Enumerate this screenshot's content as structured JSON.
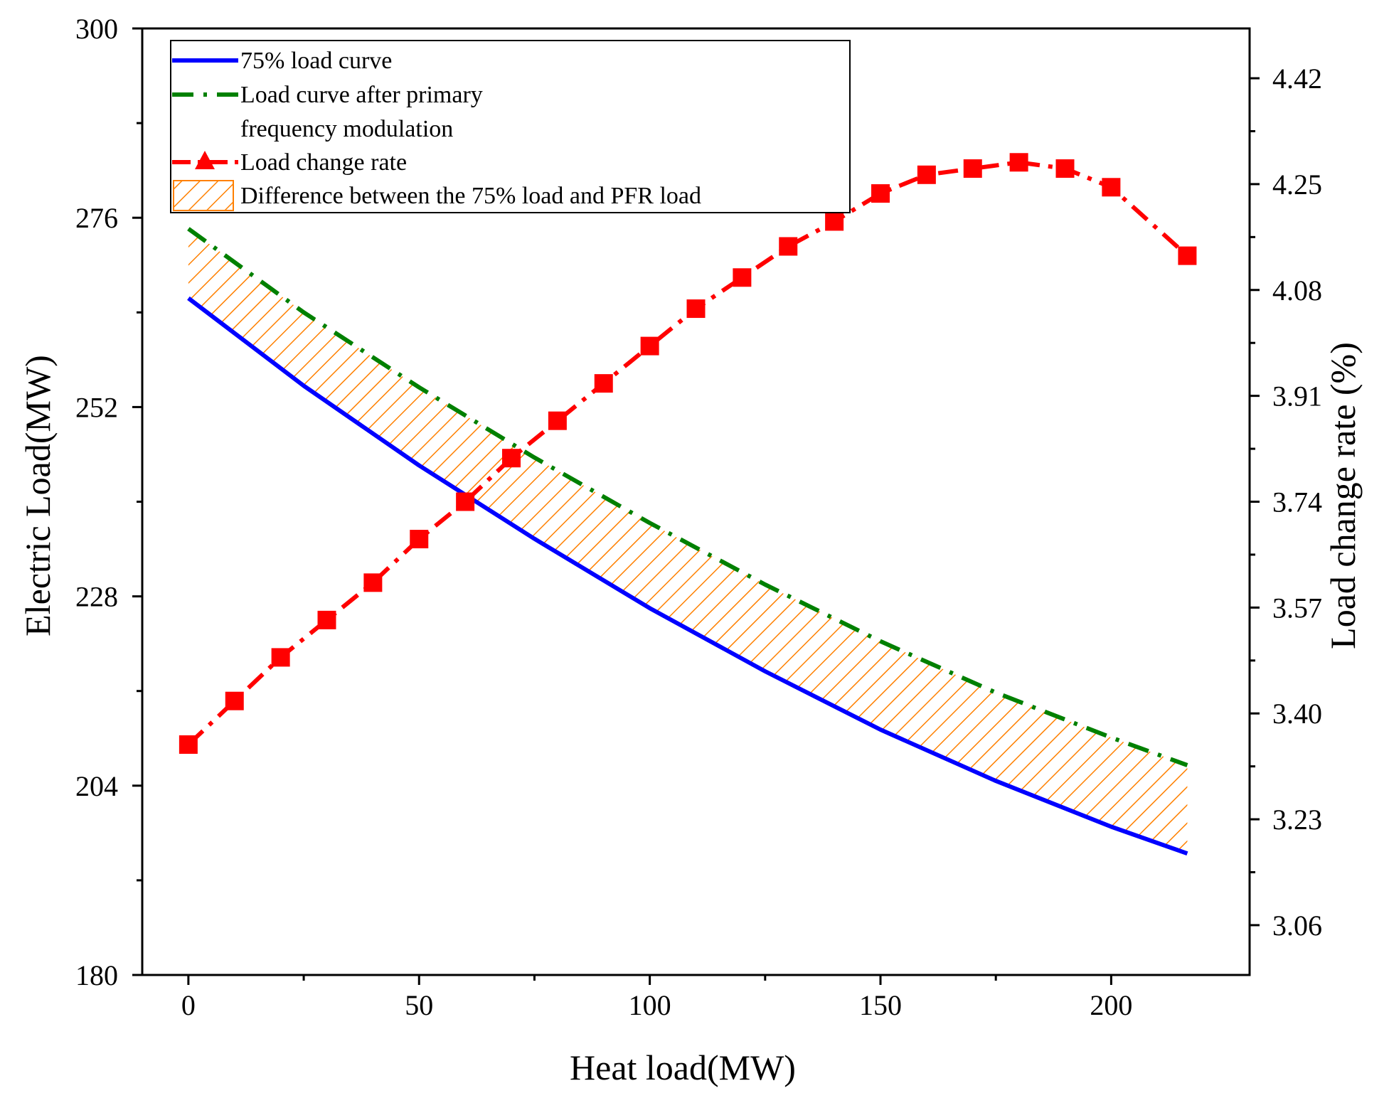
{
  "chart_data": {
    "type": "line",
    "title": "",
    "xlabel": "Heat load(MW)",
    "ylabel_left": "Electric Load(MW)",
    "ylabel_right": "Load change rate (%)",
    "xlim": [
      -10,
      230
    ],
    "ylim_left": [
      180,
      300
    ],
    "ylim_right": [
      2.98,
      4.5
    ],
    "x_ticks": [
      "0",
      "50",
      "100",
      "150",
      "200"
    ],
    "y_left_ticks": [
      "180",
      "204",
      "228",
      "252",
      "276",
      "300"
    ],
    "y_right_ticks": [
      "3.06",
      "3.23",
      "3.40",
      "3.57",
      "3.74",
      "3.91",
      "4.08",
      "4.25",
      "4.42"
    ],
    "grid": false,
    "legend_position": "top-left",
    "series": [
      {
        "name": "75% load curve",
        "axis": "left",
        "color": "#0000ff",
        "style": "solid",
        "x": [
          0,
          25,
          50,
          75,
          100,
          125,
          150,
          175,
          200,
          216.5
        ],
        "y": [
          265.8,
          254.7,
          244.6,
          235.3,
          226.5,
          218.5,
          211.1,
          204.6,
          198.8,
          195.4
        ]
      },
      {
        "name": "Load curve after primary frequency modulation",
        "axis": "left",
        "color": "#008000",
        "style": "dash",
        "x": [
          0,
          25,
          50,
          75,
          100,
          125,
          150,
          175,
          200,
          216.5
        ],
        "y": [
          274.6,
          264.0,
          254.5,
          245.6,
          237.3,
          229.5,
          222.3,
          215.8,
          210.1,
          206.6
        ]
      },
      {
        "name": "Load change rate",
        "axis": "right",
        "color": "#ff0000",
        "marker": "square",
        "style": "dash-dot",
        "x": [
          0,
          10,
          20,
          30,
          40,
          50,
          60,
          70,
          80,
          90,
          100,
          110,
          120,
          130,
          140,
          150,
          160,
          170,
          180,
          190,
          200,
          216.5
        ],
        "y": [
          3.35,
          3.42,
          3.49,
          3.55,
          3.61,
          3.68,
          3.74,
          3.81,
          3.87,
          3.93,
          3.99,
          4.05,
          4.1,
          4.15,
          4.19,
          4.235,
          4.265,
          4.275,
          4.285,
          4.275,
          4.245,
          4.135
        ]
      }
    ],
    "fill": {
      "name": "Difference between the 75% load and PFR load",
      "color": "#ff8000",
      "pattern": "diagonal hatch",
      "between": [
        "75% load curve",
        "Load curve after primary frequency modulation"
      ]
    },
    "legend": {
      "line1": "75% load curve",
      "line2a": "Load curve after primary",
      "line2b": "frequency modulation",
      "line3": "Load change rate",
      "line4": "Difference between the 75% load and PFR load"
    }
  }
}
